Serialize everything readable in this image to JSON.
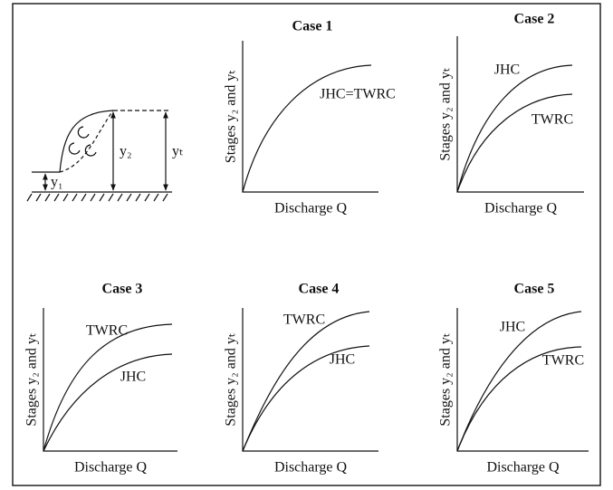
{
  "sketch": {
    "labels": [
      "y₂",
      "yₜ",
      "y₁"
    ]
  },
  "cases": [
    {
      "title": "Case 1",
      "x_label": "Discharge Q",
      "y_label": "Stages y₂ and yₜ",
      "curves": [
        "JHC=TWRC"
      ]
    },
    {
      "title": "Case 2",
      "x_label": "Discharge Q",
      "y_label": "Stages y₂ and yₜ",
      "curves": [
        "JHC",
        "TWRC"
      ]
    },
    {
      "title": "Case 3",
      "x_label": "Discharge Q",
      "y_label": "Stages y₂ and yₜ",
      "curves": [
        "TWRC",
        "JHC"
      ]
    },
    {
      "title": "Case 4",
      "x_label": "Discharge Q",
      "y_label": "Stages y₂ and yₜ",
      "curves": [
        "TWRC",
        "JHC"
      ]
    },
    {
      "title": "Case 5",
      "x_label": "Discharge Q",
      "y_label": "Stages y₂ and yₜ",
      "curves": [
        "JHC",
        "TWRC"
      ]
    }
  ]
}
